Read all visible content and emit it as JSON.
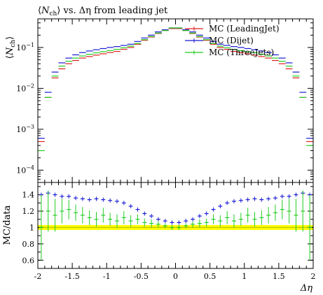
{
  "chart_data": {
    "type": "scatter",
    "title": "⟨N_ch⟩ vs. Δη from leading jet",
    "title_parts": {
      "open": "⟨",
      "sym": "N",
      "sub": "ch",
      "close": "⟩",
      "rest": " vs. Δη from leading jet"
    },
    "xlabel": "Δη",
    "ylabel": {
      "sym": "N",
      "sub": "ch"
    },
    "ratio_ylabel": "MC/data",
    "xlim": [
      -2,
      2
    ],
    "ylim": [
      5e-05,
      0.5
    ],
    "yscale": "log",
    "ratio_ylim": [
      0.5,
      1.55
    ],
    "legend_position": "top-right",
    "x_ticks": [
      "-2",
      "-1.5",
      "-1",
      "-0.5",
      "0",
      "0.5",
      "1",
      "1.5",
      "2"
    ],
    "y_ticks": [
      {
        "base": "10",
        "exp": "−1",
        "value": 0.1
      },
      {
        "base": "10",
        "exp": "−2",
        "value": 0.01
      },
      {
        "base": "10",
        "exp": "−3",
        "value": 0.001
      },
      {
        "base": "10",
        "exp": "−4",
        "value": 0.0001
      }
    ],
    "ratio_y_ticks": [
      "1.4",
      "1.2",
      "1",
      "0.8",
      "0.6"
    ],
    "series": [
      {
        "name": "MC (LeadingJet)",
        "color": "#e02020",
        "x": [
          -1.95,
          -1.85,
          -1.75,
          -1.65,
          -1.55,
          -1.45,
          -1.35,
          -1.25,
          -1.15,
          -1.05,
          -0.95,
          -0.85,
          -0.75,
          -0.65,
          -0.55,
          -0.45,
          -0.35,
          -0.25,
          -0.15,
          -0.05,
          0.05,
          0.15,
          0.25,
          0.35,
          0.45,
          0.55,
          0.65,
          0.75,
          0.85,
          0.95,
          1.05,
          1.15,
          1.25,
          1.35,
          1.45,
          1.55,
          1.65,
          1.75,
          1.85,
          1.95
        ],
        "y": [
          0.0005,
          0.006,
          0.018,
          0.03,
          0.04,
          0.048,
          0.055,
          0.06,
          0.065,
          0.07,
          0.075,
          0.08,
          0.09,
          0.1,
          0.12,
          0.15,
          0.18,
          0.22,
          0.26,
          0.29,
          0.29,
          0.26,
          0.22,
          0.18,
          0.15,
          0.12,
          0.1,
          0.09,
          0.08,
          0.075,
          0.07,
          0.065,
          0.06,
          0.055,
          0.048,
          0.04,
          0.03,
          0.018,
          0.006,
          0.0005
        ]
      },
      {
        "name": "MC (Dijet)",
        "color": "#1a1ad8",
        "x": [
          -1.95,
          -1.85,
          -1.75,
          -1.65,
          -1.55,
          -1.45,
          -1.35,
          -1.25,
          -1.15,
          -1.05,
          -0.95,
          -0.85,
          -0.75,
          -0.65,
          -0.55,
          -0.45,
          -0.35,
          -0.25,
          -0.15,
          -0.05,
          0.05,
          0.15,
          0.25,
          0.35,
          0.45,
          0.55,
          0.65,
          0.75,
          0.85,
          0.95,
          1.05,
          1.15,
          1.25,
          1.35,
          1.45,
          1.55,
          1.65,
          1.75,
          1.85,
          1.95
        ],
        "y": [
          0.0006,
          0.008,
          0.025,
          0.042,
          0.055,
          0.066,
          0.075,
          0.082,
          0.088,
          0.094,
          0.1,
          0.105,
          0.112,
          0.12,
          0.14,
          0.17,
          0.2,
          0.24,
          0.27,
          0.3,
          0.3,
          0.27,
          0.24,
          0.2,
          0.17,
          0.14,
          0.12,
          0.112,
          0.105,
          0.1,
          0.094,
          0.088,
          0.082,
          0.075,
          0.066,
          0.055,
          0.042,
          0.025,
          0.008,
          0.0006
        ]
      },
      {
        "name": "MC (ThreeJets)",
        "color": "#22cc22",
        "x": [
          -1.95,
          -1.85,
          -1.75,
          -1.65,
          -1.55,
          -1.45,
          -1.35,
          -1.25,
          -1.15,
          -1.05,
          -0.95,
          -0.85,
          -0.75,
          -0.65,
          -0.55,
          -0.45,
          -0.35,
          -0.25,
          -0.15,
          -0.05,
          0.05,
          0.15,
          0.25,
          0.35,
          0.45,
          0.55,
          0.65,
          0.75,
          0.85,
          0.95,
          1.05,
          1.15,
          1.25,
          1.35,
          1.45,
          1.55,
          1.65,
          1.75,
          1.85,
          1.95
        ],
        "y": [
          0.0003,
          0.006,
          0.02,
          0.035,
          0.046,
          0.055,
          0.062,
          0.068,
          0.074,
          0.079,
          0.084,
          0.09,
          0.098,
          0.108,
          0.125,
          0.155,
          0.185,
          0.225,
          0.26,
          0.3,
          0.3,
          0.26,
          0.225,
          0.185,
          0.155,
          0.125,
          0.108,
          0.098,
          0.09,
          0.084,
          0.079,
          0.074,
          0.068,
          0.062,
          0.055,
          0.046,
          0.035,
          0.02,
          0.006,
          0.0004
        ]
      }
    ],
    "ratio_band": {
      "color": "#ffff00",
      "line_color": "#c8c800",
      "half_width": 0.03
    },
    "ratio_series": [
      {
        "name": "MC (Dijet)",
        "color": "#1a1ad8",
        "x": [
          -1.95,
          -1.85,
          -1.75,
          -1.65,
          -1.55,
          -1.45,
          -1.35,
          -1.25,
          -1.15,
          -1.05,
          -0.95,
          -0.85,
          -0.75,
          -0.65,
          -0.55,
          -0.45,
          -0.35,
          -0.25,
          -0.15,
          -0.05,
          0.05,
          0.15,
          0.25,
          0.35,
          0.45,
          0.55,
          0.65,
          0.75,
          0.85,
          0.95,
          1.05,
          1.15,
          1.25,
          1.35,
          1.45,
          1.55,
          1.65,
          1.75,
          1.85,
          1.95
        ],
        "y": [
          1.4,
          1.42,
          1.4,
          1.38,
          1.38,
          1.36,
          1.35,
          1.34,
          1.35,
          1.34,
          1.33,
          1.32,
          1.3,
          1.26,
          1.22,
          1.17,
          1.14,
          1.1,
          1.08,
          1.06,
          1.06,
          1.08,
          1.1,
          1.14,
          1.17,
          1.22,
          1.26,
          1.3,
          1.32,
          1.33,
          1.34,
          1.35,
          1.34,
          1.35,
          1.36,
          1.38,
          1.38,
          1.4,
          1.42,
          1.4
        ]
      },
      {
        "name": "MC (ThreeJets)",
        "color": "#22cc22",
        "x": [
          -1.95,
          -1.85,
          -1.75,
          -1.65,
          -1.55,
          -1.45,
          -1.35,
          -1.25,
          -1.15,
          -1.05,
          -0.95,
          -0.85,
          -0.75,
          -0.65,
          -0.55,
          -0.45,
          -0.35,
          -0.25,
          -0.15,
          -0.05,
          0.05,
          0.15,
          0.25,
          0.35,
          0.45,
          0.55,
          0.65,
          0.75,
          0.85,
          0.95,
          1.05,
          1.15,
          1.25,
          1.35,
          1.45,
          1.55,
          1.65,
          1.75,
          1.85,
          1.95
        ],
        "y": [
          1.0,
          1.2,
          1.15,
          1.2,
          1.22,
          1.18,
          1.15,
          1.12,
          1.1,
          1.15,
          1.1,
          1.08,
          1.12,
          1.08,
          1.1,
          1.06,
          1.05,
          1.04,
          1.02,
          1.0,
          1.0,
          1.02,
          1.04,
          1.05,
          1.06,
          1.1,
          1.08,
          1.12,
          1.08,
          1.1,
          1.15,
          1.1,
          1.12,
          1.15,
          1.18,
          1.22,
          1.2,
          1.15,
          1.2,
          1.0
        ],
        "err": [
          0.4,
          0.25,
          0.2,
          0.15,
          0.12,
          0.1,
          0.1,
          0.09,
          0.09,
          0.09,
          0.08,
          0.08,
          0.08,
          0.07,
          0.06,
          0.05,
          0.05,
          0.04,
          0.03,
          0.03,
          0.03,
          0.03,
          0.04,
          0.05,
          0.05,
          0.06,
          0.07,
          0.08,
          0.08,
          0.08,
          0.09,
          0.09,
          0.09,
          0.1,
          0.1,
          0.12,
          0.15,
          0.2,
          0.25,
          0.4
        ]
      }
    ]
  }
}
